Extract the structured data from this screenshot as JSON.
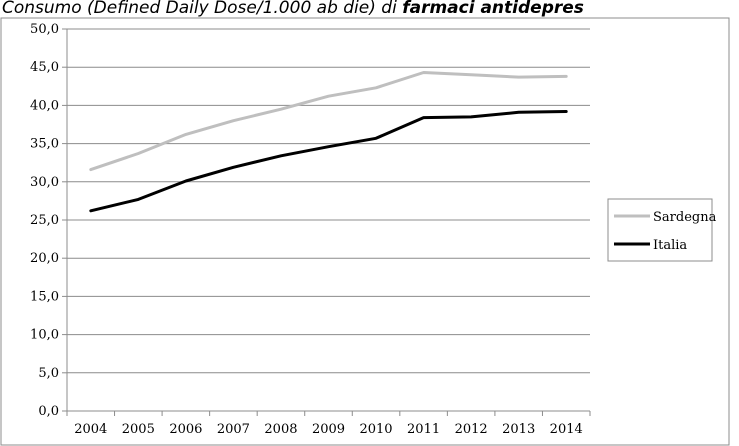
{
  "chart_data": {
    "type": "line",
    "title_prefix": "Consumo (Defined Daily Dose/1.000 ab die) di ",
    "title_bold": "farmaci antidepres",
    "xlabel": "",
    "ylabel": "",
    "categories": [
      "2004",
      "2005",
      "2006",
      "2007",
      "2008",
      "2009",
      "2010",
      "2011",
      "2012",
      "2013",
      "2014"
    ],
    "y_ticks": [
      "0,0",
      "5,0",
      "10,0",
      "15,0",
      "20,0",
      "25,0",
      "30,0",
      "35,0",
      "40,0",
      "45,0",
      "50,0"
    ],
    "ylim": [
      0,
      50
    ],
    "grid": true,
    "legend_position": "right",
    "series": [
      {
        "name": "Sardegna",
        "color": "#bfbfbf",
        "values": [
          31.6,
          33.7,
          36.2,
          38.0,
          39.5,
          41.2,
          42.3,
          44.3,
          44.0,
          43.7,
          43.8
        ]
      },
      {
        "name": "Italia",
        "color": "#000000",
        "values": [
          26.2,
          27.7,
          30.1,
          31.9,
          33.4,
          34.6,
          35.7,
          38.4,
          38.5,
          39.1,
          39.2
        ]
      }
    ]
  }
}
